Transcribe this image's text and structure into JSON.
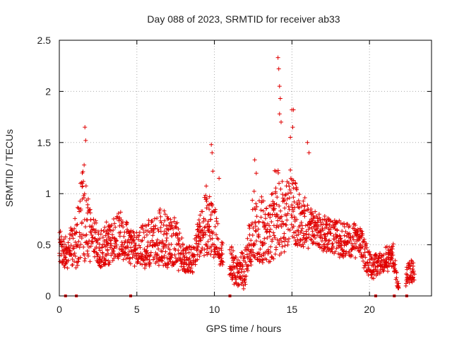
{
  "chart_data": {
    "type": "scatter",
    "title": "Day 088 of 2023, SRMTID for receiver ab33",
    "xlabel": "GPS time / hours",
    "ylabel": "SRMTID / TECUs",
    "xlim": [
      0,
      24
    ],
    "ylim": [
      0,
      2.5
    ],
    "xticks": [
      0,
      5,
      10,
      15,
      20
    ],
    "yticks": [
      0,
      0.5,
      1,
      1.5,
      2,
      2.5
    ],
    "xtick_labels": [
      "0",
      "5",
      "10",
      "15",
      "20"
    ],
    "ytick_labels": [
      "0",
      "0.5",
      "1",
      "1.5",
      "2",
      "2.5"
    ],
    "grid": true,
    "marker": "+",
    "colors": {
      "series": "#e00000",
      "grid": "#aaaaaa",
      "axis": "#000000"
    },
    "series": [
      {
        "name": "SRMTID",
        "envelopes": [
          [
            0.0,
            0.3,
            0.65
          ],
          [
            0.5,
            0.28,
            0.55
          ],
          [
            1.0,
            0.3,
            0.75
          ],
          [
            1.5,
            0.35,
            1.3
          ],
          [
            2.0,
            0.35,
            0.8
          ],
          [
            2.5,
            0.3,
            0.7
          ],
          [
            3.0,
            0.3,
            0.7
          ],
          [
            3.5,
            0.35,
            0.75
          ],
          [
            4.0,
            0.4,
            0.85
          ],
          [
            4.5,
            0.35,
            0.65
          ],
          [
            5.0,
            0.3,
            0.65
          ],
          [
            5.5,
            0.3,
            0.7
          ],
          [
            6.0,
            0.3,
            0.75
          ],
          [
            6.5,
            0.3,
            0.9
          ],
          [
            7.0,
            0.3,
            0.75
          ],
          [
            7.5,
            0.3,
            0.75
          ],
          [
            8.0,
            0.2,
            0.5
          ],
          [
            8.5,
            0.2,
            0.45
          ],
          [
            9.0,
            0.35,
            0.75
          ],
          [
            9.5,
            0.4,
            1.1
          ],
          [
            10.0,
            0.4,
            0.9
          ],
          [
            10.5,
            0.3,
            0.5
          ],
          [
            11.0,
            0.2,
            0.5
          ],
          [
            11.5,
            0.08,
            0.35
          ],
          [
            12.0,
            0.1,
            0.45
          ],
          [
            12.5,
            0.3,
            1.1
          ],
          [
            13.0,
            0.35,
            0.95
          ],
          [
            13.5,
            0.35,
            0.85
          ],
          [
            14.0,
            0.4,
            1.3
          ],
          [
            14.5,
            0.45,
            1.1
          ],
          [
            15.0,
            0.5,
            1.3
          ],
          [
            15.5,
            0.5,
            1.0
          ],
          [
            16.0,
            0.5,
            0.9
          ],
          [
            16.5,
            0.5,
            0.85
          ],
          [
            17.0,
            0.45,
            0.8
          ],
          [
            17.5,
            0.45,
            0.75
          ],
          [
            18.0,
            0.4,
            0.75
          ],
          [
            18.5,
            0.4,
            0.7
          ],
          [
            19.0,
            0.4,
            0.7
          ],
          [
            19.5,
            0.35,
            0.65
          ],
          [
            20.0,
            0.2,
            0.4
          ],
          [
            20.5,
            0.2,
            0.4
          ],
          [
            21.0,
            0.25,
            0.45
          ],
          [
            21.5,
            0.3,
            0.5
          ],
          [
            22.0,
            0.0,
            0.0
          ],
          [
            22.5,
            0.15,
            0.35
          ],
          [
            22.9,
            0.15,
            0.3
          ]
        ],
        "peaks": [
          [
            1.65,
            1.65
          ],
          [
            1.7,
            1.52
          ],
          [
            1.6,
            1.28
          ],
          [
            1.55,
            1.12
          ],
          [
            9.8,
            1.48
          ],
          [
            9.85,
            1.4
          ],
          [
            9.9,
            1.22
          ],
          [
            10.3,
            1.15
          ],
          [
            12.6,
            1.33
          ],
          [
            12.7,
            1.2
          ],
          [
            14.1,
            2.33
          ],
          [
            14.15,
            2.22
          ],
          [
            14.2,
            2.05
          ],
          [
            14.25,
            1.93
          ],
          [
            14.2,
            1.78
          ],
          [
            14.3,
            1.7
          ],
          [
            15.0,
            1.82
          ],
          [
            15.1,
            1.82
          ],
          [
            15.05,
            1.65
          ],
          [
            14.9,
            1.55
          ],
          [
            16.0,
            1.5
          ],
          [
            16.1,
            1.4
          ]
        ]
      }
    ],
    "gap_markers_x": [
      0.4,
      1.1,
      4.6,
      11.0,
      20.4,
      21.6,
      22.4
    ]
  }
}
